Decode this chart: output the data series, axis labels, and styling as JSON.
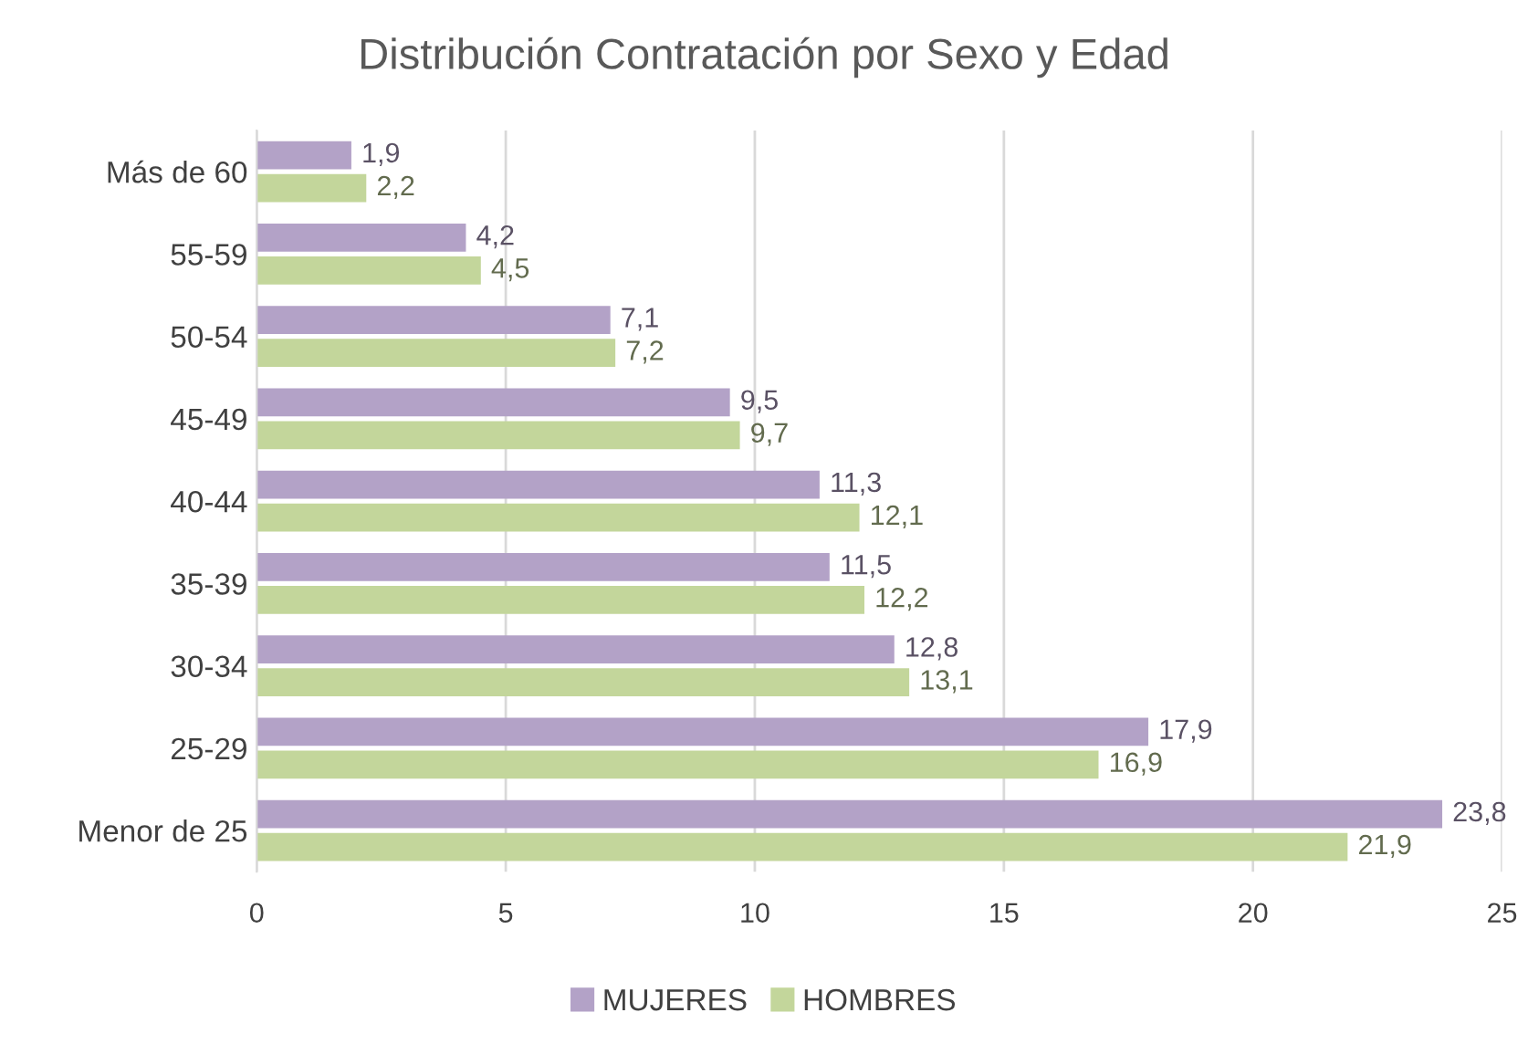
{
  "chart_data": {
    "type": "bar",
    "orientation": "horizontal",
    "title": "Distribución Contratación por Sexo y Edad",
    "categories": [
      "Más de 60",
      "55-59",
      "50-54",
      "45-49",
      "40-44",
      "35-39",
      "30-34",
      "25-29",
      "Menor de 25"
    ],
    "series": [
      {
        "name": "MUJERES",
        "color": "#b3a2c7",
        "values": [
          1.9,
          4.2,
          7.1,
          9.5,
          11.3,
          11.5,
          12.8,
          17.9,
          23.8
        ],
        "value_labels": [
          "1,9",
          "4,2",
          "7,1",
          "9,5",
          "11,3",
          "11,5",
          "12,8",
          "17,9",
          "23,8"
        ]
      },
      {
        "name": "HOMBRES",
        "color": "#c3d69b",
        "values": [
          2.2,
          4.5,
          7.2,
          9.7,
          12.1,
          12.2,
          13.1,
          16.9,
          21.9
        ],
        "value_labels": [
          "2,2",
          "4,5",
          "7,2",
          "9,7",
          "12,1",
          "12,2",
          "13,1",
          "16,9",
          "21,9"
        ]
      }
    ],
    "xlim": [
      0,
      25
    ],
    "xticks": [
      0,
      5,
      10,
      15,
      20,
      25
    ],
    "grid": "x",
    "legend": "bottom"
  }
}
